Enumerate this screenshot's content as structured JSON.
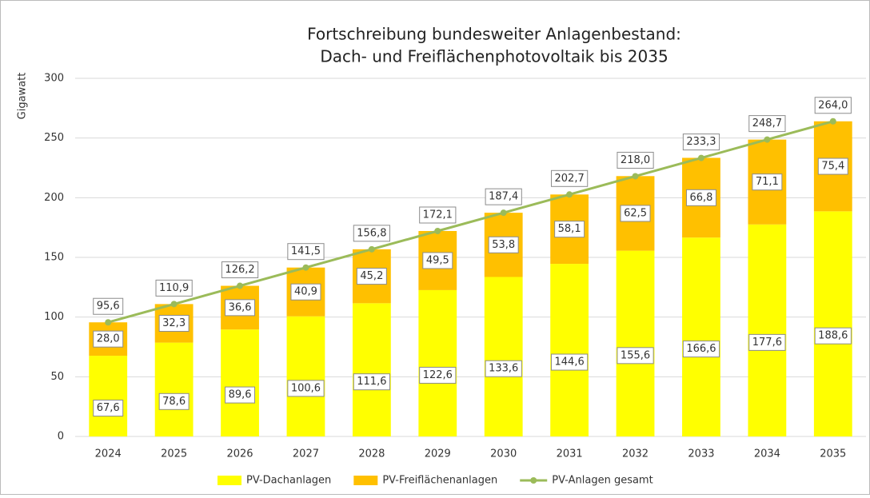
{
  "chart_data": {
    "type": "bar",
    "stacked": true,
    "title": [
      "Fortschreibung bundesweiter Anlagenbestand:",
      "Dach- und Freiflächenphotovoltaik bis 2035"
    ],
    "y_label": "Gigawatt",
    "categories": [
      "2024",
      "2025",
      "2026",
      "2027",
      "2028",
      "2029",
      "2030",
      "2031",
      "2032",
      "2033",
      "2034",
      "2035"
    ],
    "series": [
      {
        "name": "PV-Dachanlagen",
        "type": "bar",
        "color": "#ffff00",
        "values": [
          67.6,
          78.6,
          89.6,
          100.6,
          111.6,
          122.6,
          133.6,
          144.6,
          155.6,
          166.6,
          177.6,
          188.6
        ],
        "value_labels": [
          "67,6",
          "78,6",
          "89,6",
          "100,6",
          "111,6",
          "122,6",
          "133,6",
          "144,6",
          "155,6",
          "166,6",
          "177,6",
          "188,6"
        ]
      },
      {
        "name": "PV-Freiflächenanlagen",
        "type": "bar",
        "color": "#ffc000",
        "values": [
          28.0,
          32.3,
          36.6,
          40.9,
          45.2,
          49.5,
          53.8,
          58.1,
          62.5,
          66.8,
          71.1,
          75.4
        ],
        "value_labels": [
          "28,0",
          "32,3",
          "36,6",
          "40,9",
          "45,2",
          "49,5",
          "53,8",
          "58,1",
          "62,5",
          "66,8",
          "71,1",
          "75,4"
        ]
      },
      {
        "name": "PV-Anlagen gesamt",
        "type": "line",
        "color": "#9bbb59",
        "values": [
          95.6,
          110.9,
          126.2,
          141.5,
          156.8,
          172.1,
          187.4,
          202.7,
          218.0,
          233.3,
          248.7,
          264.0
        ],
        "value_labels": [
          "95,6",
          "110,9",
          "126,2",
          "141,5",
          "156,8",
          "172,1",
          "187,4",
          "202,7",
          "218,0",
          "233,3",
          "248,7",
          "264,0"
        ]
      }
    ],
    "ylim": [
      0,
      300
    ],
    "yticks": [
      0,
      50,
      100,
      150,
      200,
      250,
      300
    ],
    "grid": true,
    "legend": "bottom"
  }
}
